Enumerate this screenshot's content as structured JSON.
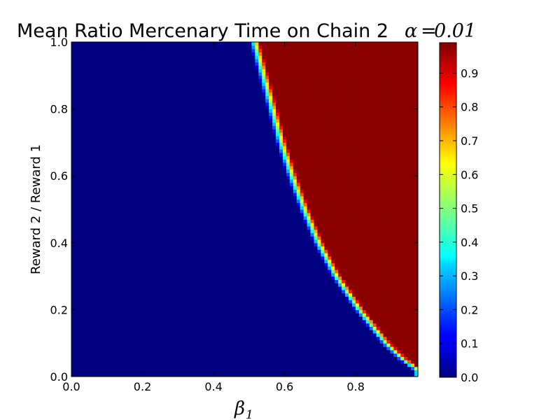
{
  "chart_data": {
    "type": "heatmap",
    "title": "Mean Ratio Mercenary Time on Chain 2",
    "title_math": {
      "symbol": "α",
      "equals": "=",
      "value": "0.01"
    },
    "xlabel": {
      "symbol": "β",
      "subscript": "1"
    },
    "ylabel": "Reward 2 / Reward 1",
    "xlim": [
      0.0,
      0.975
    ],
    "ylim": [
      0.0,
      1.0
    ],
    "x_ticks": [
      "0.0",
      "0.2",
      "0.4",
      "0.6",
      "0.8"
    ],
    "x_tick_values": [
      0.0,
      0.2,
      0.4,
      0.6,
      0.8
    ],
    "y_ticks": [
      "0.0",
      "0.2",
      "0.4",
      "0.6",
      "0.8",
      "1.0"
    ],
    "y_tick_values": [
      0.0,
      0.2,
      0.4,
      0.6,
      0.8,
      1.0
    ],
    "grid": false,
    "colormap": "jet",
    "colorbar": {
      "range": [
        0.0,
        0.99
      ],
      "ticks": [
        "0.0",
        "0.1",
        "0.2",
        "0.3",
        "0.4",
        "0.5",
        "0.6",
        "0.7",
        "0.8",
        "0.9"
      ],
      "tick_values": [
        0.0,
        0.1,
        0.2,
        0.3,
        0.4,
        0.5,
        0.6,
        0.7,
        0.8,
        0.9
      ]
    },
    "grid_size": {
      "nx": 100,
      "ny": 100
    },
    "boundary": {
      "description": "Cells with value ≈0 to the lower-left of the curve and ≈0.99 to the upper-right; transition band about 0.03 wide in beta_1",
      "beta1_at_ratio": [
        {
          "ratio": 0.02,
          "beta1": 0.975
        },
        {
          "ratio": 0.05,
          "beta1": 0.935
        },
        {
          "ratio": 0.1,
          "beta1": 0.885
        },
        {
          "ratio": 0.2,
          "beta1": 0.81
        },
        {
          "ratio": 0.3,
          "beta1": 0.745
        },
        {
          "ratio": 0.4,
          "beta1": 0.695
        },
        {
          "ratio": 0.5,
          "beta1": 0.655
        },
        {
          "ratio": 0.6,
          "beta1": 0.62
        },
        {
          "ratio": 0.7,
          "beta1": 0.59
        },
        {
          "ratio": 0.8,
          "beta1": 0.565
        },
        {
          "ratio": 0.9,
          "beta1": 0.54
        },
        {
          "ratio": 1.0,
          "beta1": 0.515
        }
      ],
      "transition_width": 0.03,
      "low_value": 0.0,
      "high_value": 0.99
    }
  }
}
